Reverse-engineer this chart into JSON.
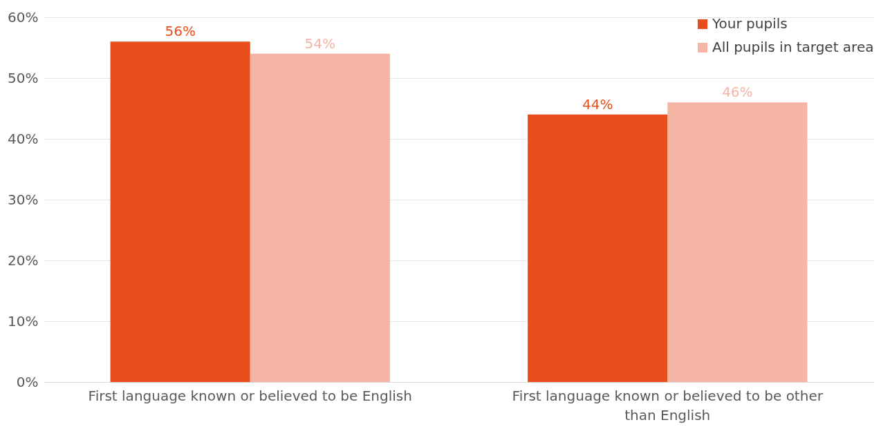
{
  "chart_data": {
    "type": "bar",
    "categories": [
      "First language known or believed to be English",
      "First language known or believed to be other than English"
    ],
    "series": [
      {
        "name": "Your pupils",
        "color": "#e84e1b",
        "values": [
          56,
          44
        ]
      },
      {
        "name": "All pupils in target area",
        "color": "#f4b5a4",
        "values": [
          54,
          46
        ]
      }
    ],
    "ylim": [
      0,
      60
    ],
    "yticks": [
      {
        "value": 0,
        "label": "0%"
      },
      {
        "value": 10,
        "label": "10%"
      },
      {
        "value": 20,
        "label": "20%"
      },
      {
        "value": 30,
        "label": "30%"
      },
      {
        "value": 40,
        "label": "40%"
      },
      {
        "value": 50,
        "label": "50%"
      },
      {
        "value": 60,
        "label": "60%"
      }
    ],
    "value_labels": [
      [
        "56%",
        "44%"
      ],
      [
        "54%",
        "46%"
      ]
    ],
    "grid": "y",
    "legend": "top right"
  }
}
